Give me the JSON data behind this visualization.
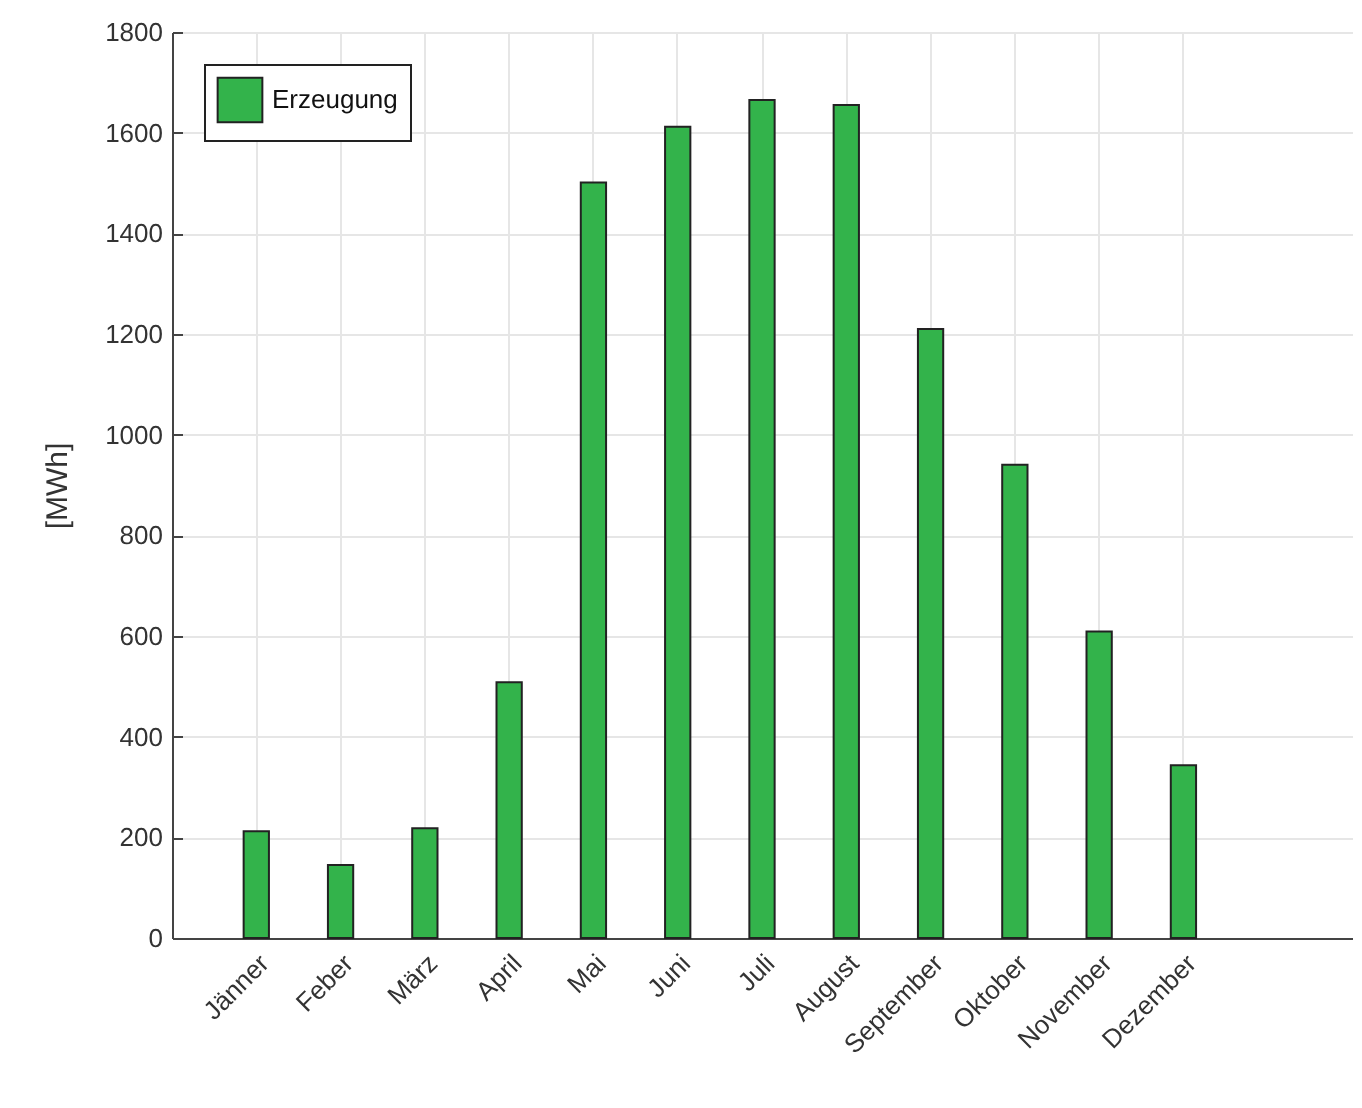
{
  "chart_data": {
    "type": "bar",
    "ylabel": "[MWh]",
    "categories": [
      "Jänner",
      "Feber",
      "März",
      "April",
      "Mai",
      "Juni",
      "Juli",
      "August",
      "September",
      "Oktober",
      "November",
      "Dezember"
    ],
    "series": [
      {
        "name": "Erzeugung",
        "color": "#33b34b",
        "values": [
          212,
          145,
          218,
          508,
          1501,
          1612,
          1665,
          1655,
          1210,
          940,
          609,
          343
        ]
      }
    ],
    "ylim": [
      0,
      1800
    ],
    "yticks": [
      0,
      200,
      400,
      600,
      800,
      1000,
      1200,
      1400,
      1600,
      1800
    ],
    "grid": true,
    "legend": "top left"
  }
}
